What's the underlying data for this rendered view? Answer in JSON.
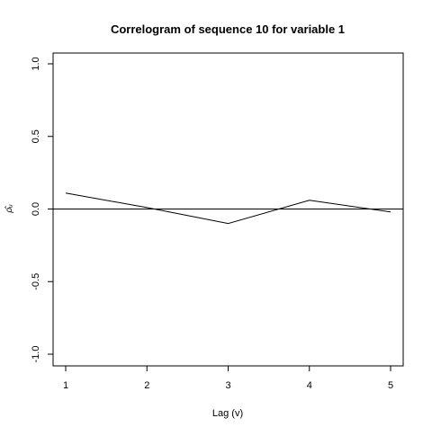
{
  "chart_data": {
    "type": "line",
    "title": "Correlogram of sequence  10  for variable  1",
    "xlabel": "Lag (v)",
    "ylabel": "ρ̂ᵤ",
    "x": [
      1,
      2,
      3,
      4,
      5
    ],
    "x_ticks": [
      "1",
      "2",
      "3",
      "4",
      "5"
    ],
    "y_ticks": [
      "-1.0",
      "-0.5",
      "0.0",
      "0.5",
      "1.0"
    ],
    "y_tick_values": [
      -1.0,
      -0.5,
      0.0,
      0.5,
      1.0
    ],
    "xlim": [
      1,
      5
    ],
    "ylim": [
      -1,
      1
    ],
    "reference_line": 0,
    "series": [
      {
        "values": [
          0.11,
          0.01,
          -0.1,
          0.06,
          -0.02
        ]
      }
    ],
    "grid": false,
    "legend": "none",
    "line_color": "#000000"
  }
}
